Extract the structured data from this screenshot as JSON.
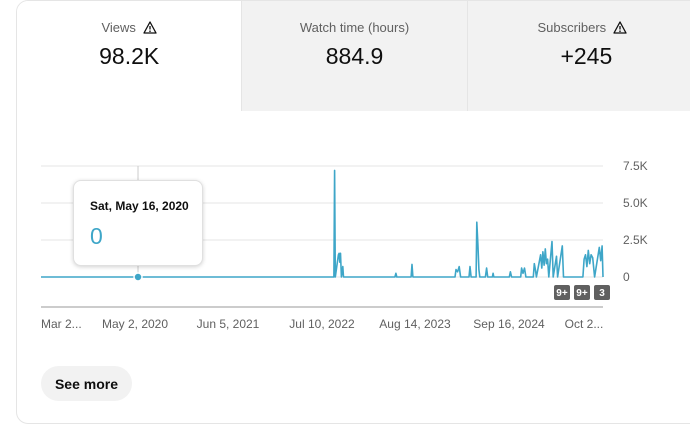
{
  "metrics": [
    {
      "label": "Views",
      "value": "98.2K",
      "warning": true
    },
    {
      "label": "Watch time (hours)",
      "value": "884.9",
      "warning": false
    },
    {
      "label": "Subscribers",
      "value": "+245",
      "warning": true
    }
  ],
  "tooltip": {
    "date": "Sat, May 16, 2020",
    "value": "0"
  },
  "see_more_label": "See more",
  "badges": [
    "9+",
    "9+",
    "3"
  ],
  "colors": {
    "line": "#3ea6c8",
    "grid": "#e5e5e5",
    "badge": "#606060",
    "selected_tab": "#ffffff",
    "other_tab": "#f2f2f2"
  },
  "chart_data": {
    "type": "line",
    "x_tick_labels": [
      "Mar 2...",
      "May 2, 2020",
      "Jun 5, 2021",
      "Jul 10, 2022",
      "Aug 14, 2023",
      "Sep 16, 2024",
      "Oct 2..."
    ],
    "y_ticks": [
      0,
      2500,
      5000,
      7500
    ],
    "y_tick_labels": [
      "0",
      "2.5K",
      "5.0K",
      "7.5K"
    ],
    "ylim": [
      0,
      7500
    ],
    "x_range": [
      "2019-03-28",
      "2025-10-26"
    ],
    "grid": true,
    "series": [
      {
        "values": [
          [
            "2019-03-28",
            0
          ],
          [
            "2022-09-01",
            0
          ],
          [
            "2022-09-04",
            7200
          ],
          [
            "2022-09-07",
            0
          ],
          [
            "2022-09-20",
            1500
          ],
          [
            "2022-09-23",
            1600
          ],
          [
            "2022-09-26",
            1000
          ],
          [
            "2022-09-29",
            1600
          ],
          [
            "2022-10-03",
            0
          ],
          [
            "2022-10-09",
            700
          ],
          [
            "2022-10-12",
            0
          ],
          [
            "2023-05-20",
            0
          ],
          [
            "2023-05-24",
            250
          ],
          [
            "2023-05-28",
            0
          ],
          [
            "2023-07-28",
            0
          ],
          [
            "2023-08-01",
            850
          ],
          [
            "2023-08-05",
            0
          ],
          [
            "2024-02-01",
            0
          ],
          [
            "2024-02-05",
            500
          ],
          [
            "2024-02-12",
            350
          ],
          [
            "2024-02-19",
            700
          ],
          [
            "2024-02-25",
            0
          ],
          [
            "2024-04-01",
            0
          ],
          [
            "2024-04-05",
            700
          ],
          [
            "2024-04-10",
            0
          ],
          [
            "2024-05-01",
            0
          ],
          [
            "2024-05-04",
            3700
          ],
          [
            "2024-05-09",
            2200
          ],
          [
            "2024-05-13",
            500
          ],
          [
            "2024-05-17",
            0
          ],
          [
            "2024-06-10",
            0
          ],
          [
            "2024-06-15",
            600
          ],
          [
            "2024-06-20",
            0
          ],
          [
            "2024-07-10",
            0
          ],
          [
            "2024-07-13",
            250
          ],
          [
            "2024-07-16",
            0
          ],
          [
            "2024-09-20",
            0
          ],
          [
            "2024-09-25",
            350
          ],
          [
            "2024-09-30",
            0
          ],
          [
            "2024-11-08",
            0
          ],
          [
            "2024-11-12",
            600
          ],
          [
            "2024-11-18",
            250
          ],
          [
            "2024-11-24",
            600
          ],
          [
            "2024-11-30",
            0
          ],
          [
            "2025-01-01",
            0
          ],
          [
            "2025-01-05",
            900
          ],
          [
            "2025-01-10",
            500
          ],
          [
            "2025-01-14",
            0
          ],
          [
            "2025-02-01",
            1500
          ],
          [
            "2025-02-06",
            600
          ],
          [
            "2025-02-11",
            1700
          ],
          [
            "2025-02-16",
            800
          ],
          [
            "2025-02-21",
            1900
          ],
          [
            "2025-02-26",
            900
          ],
          [
            "2025-03-03",
            1200
          ],
          [
            "2025-03-08",
            0
          ],
          [
            "2025-03-22",
            2400
          ],
          [
            "2025-03-27",
            0
          ],
          [
            "2025-04-10",
            1400
          ],
          [
            "2025-04-15",
            0
          ],
          [
            "2025-05-05",
            2100
          ],
          [
            "2025-05-10",
            0
          ],
          [
            "2025-08-01",
            0
          ],
          [
            "2025-08-06",
            1200
          ],
          [
            "2025-08-12",
            1500
          ],
          [
            "2025-08-18",
            700
          ],
          [
            "2025-08-24",
            1800
          ],
          [
            "2025-08-30",
            900
          ],
          [
            "2025-09-05",
            1500
          ],
          [
            "2025-09-12",
            1300
          ],
          [
            "2025-09-20",
            0
          ],
          [
            "2025-10-10",
            2000
          ],
          [
            "2025-10-16",
            1100
          ],
          [
            "2025-10-22",
            2100
          ],
          [
            "2025-10-26",
            0
          ]
        ]
      }
    ],
    "highlight": {
      "x": "2020-05-16",
      "y": 0
    }
  }
}
